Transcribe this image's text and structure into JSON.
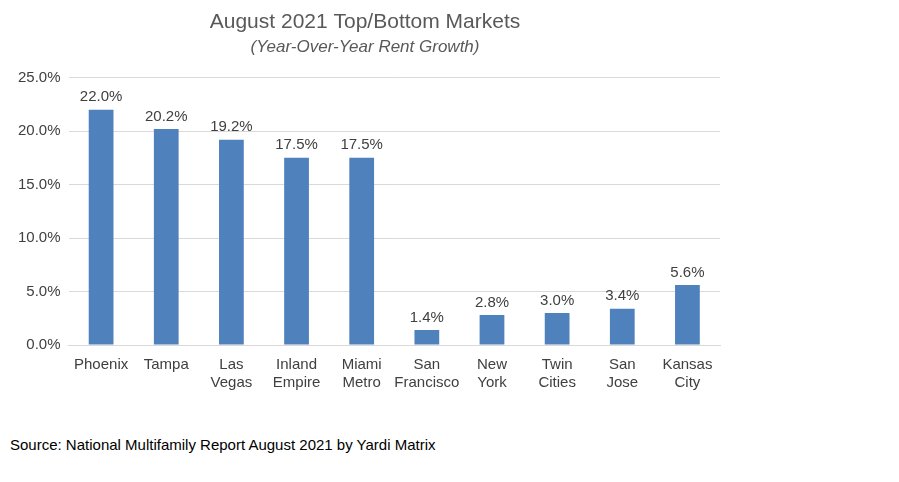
{
  "chart_data": {
    "type": "bar",
    "title": "August 2021 Top/Bottom Markets",
    "subtitle": "(Year-Over-Year Rent Growth)",
    "source": "Source: National Multifamily Report August 2021 by Yardi Matrix",
    "categories": [
      "Phoenix",
      "Tampa",
      "Las Vegas",
      "Inland Empire",
      "Miami Metro",
      "San Francisco",
      "New York",
      "Twin Cities",
      "San Jose",
      "Kansas City"
    ],
    "values": [
      22.0,
      20.2,
      19.2,
      17.5,
      17.5,
      1.4,
      2.8,
      3.0,
      3.4,
      5.6
    ],
    "value_labels": [
      "22.0%",
      "20.2%",
      "19.2%",
      "17.5%",
      "17.5%",
      "1.4%",
      "2.8%",
      "3.0%",
      "3.4%",
      "5.6%"
    ],
    "data_labels": true,
    "color": "#4f81bd",
    "ylim": [
      0,
      25
    ],
    "yticks": [
      {
        "value": 0,
        "label": "0.0%"
      },
      {
        "value": 5,
        "label": "5.0%"
      },
      {
        "value": 10,
        "label": "10.0%"
      },
      {
        "value": 15,
        "label": "15.0%"
      },
      {
        "value": 20,
        "label": "20.0%"
      },
      {
        "value": 25,
        "label": "25.0%"
      }
    ],
    "grid": true
  }
}
